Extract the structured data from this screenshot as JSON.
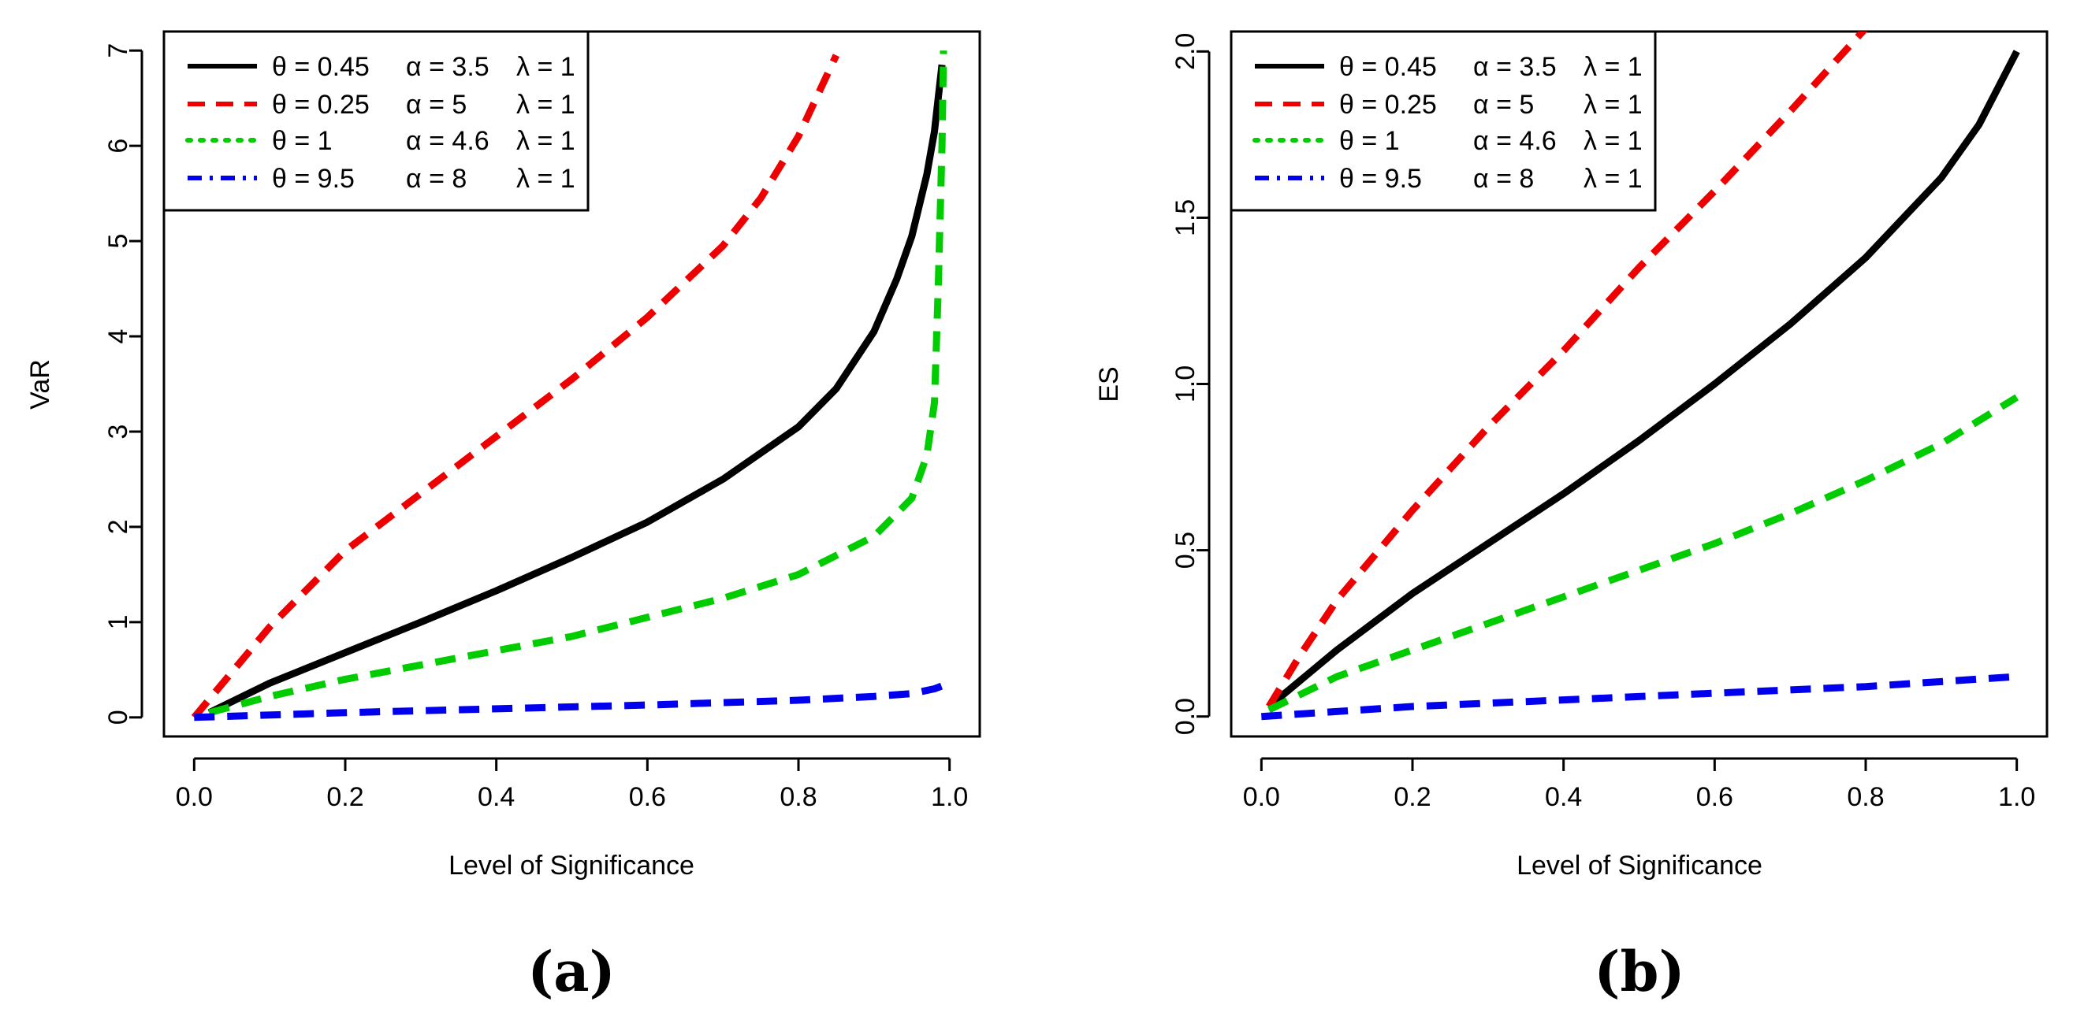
{
  "chart_data": [
    {
      "type": "line",
      "panel_label": "(a)",
      "title": "",
      "xlabel": "Level of Significance",
      "ylabel": "VaR",
      "xlim": [
        -0.04,
        1.04
      ],
      "ylim": [
        -0.2,
        7.2
      ],
      "xticks": [
        0.0,
        0.2,
        0.4,
        0.6,
        0.8,
        1.0
      ],
      "xtick_labels": [
        "0.0",
        "0.2",
        "0.4",
        "0.6",
        "0.8",
        "1.0"
      ],
      "yticks": [
        0,
        1,
        2,
        3,
        4,
        5,
        6,
        7
      ],
      "ytick_labels": [
        "0",
        "1",
        "2",
        "3",
        "4",
        "5",
        "6",
        "7"
      ],
      "grid": false,
      "legend_position": "top-left",
      "series": [
        {
          "name": "θ = 0.45  α = 3.5  λ = 1",
          "legend": {
            "theta": "θ = 0.45",
            "alpha": "α = 3.5",
            "lambda": "λ = 1"
          },
          "color": "#000000",
          "style": "solid",
          "x": [
            0.02,
            0.1,
            0.2,
            0.3,
            0.4,
            0.5,
            0.6,
            0.7,
            0.8,
            0.85,
            0.9,
            0.93,
            0.95,
            0.97,
            0.98,
            0.99
          ],
          "y": [
            0.05,
            0.36,
            0.68,
            1.0,
            1.33,
            1.68,
            2.05,
            2.5,
            3.05,
            3.45,
            4.05,
            4.6,
            5.05,
            5.7,
            6.15,
            6.85
          ]
        },
        {
          "name": "θ = 0.25  α = 5  λ = 1",
          "legend": {
            "theta": "θ = 0.25",
            "alpha": "α = 5",
            "lambda": "λ = 1"
          },
          "color": "#ee0000",
          "style": "dashed",
          "x": [
            0.0,
            0.1,
            0.2,
            0.3,
            0.4,
            0.5,
            0.6,
            0.7,
            0.75,
            0.8,
            0.85
          ],
          "y": [
            0.0,
            0.95,
            1.75,
            2.35,
            2.95,
            3.55,
            4.2,
            4.95,
            5.45,
            6.1,
            6.95
          ]
        },
        {
          "name": "θ = 1  α = 4.6  λ = 1",
          "legend": {
            "theta": "θ = 1",
            "alpha": "α = 4.6",
            "lambda": "λ = 1"
          },
          "color": "#00cc00",
          "style": "dashed",
          "x": [
            0.02,
            0.1,
            0.2,
            0.3,
            0.4,
            0.5,
            0.6,
            0.7,
            0.8,
            0.9,
            0.95,
            0.97,
            0.98,
            0.985,
            0.99,
            0.992
          ],
          "y": [
            0.05,
            0.22,
            0.4,
            0.55,
            0.7,
            0.85,
            1.05,
            1.25,
            1.5,
            1.9,
            2.3,
            2.75,
            3.3,
            4.5,
            6.0,
            7.0
          ]
        },
        {
          "name": "θ = 9.5  α = 8  λ = 1",
          "legend": {
            "theta": "θ = 9.5",
            "alpha": "α = 8",
            "lambda": "λ = 1"
          },
          "color": "#0000ee",
          "style": "dashed",
          "x": [
            0.0,
            0.2,
            0.4,
            0.6,
            0.8,
            0.9,
            0.95,
            0.98,
            0.99
          ],
          "y": [
            0.0,
            0.05,
            0.09,
            0.13,
            0.18,
            0.22,
            0.25,
            0.3,
            0.33
          ]
        }
      ]
    },
    {
      "type": "line",
      "panel_label": "(b)",
      "title": "",
      "xlabel": "Level of Significance",
      "ylabel": "ES",
      "xlim": [
        -0.04,
        1.04
      ],
      "ylim": [
        -0.06,
        2.06
      ],
      "xticks": [
        0.0,
        0.2,
        0.4,
        0.6,
        0.8,
        1.0
      ],
      "xtick_labels": [
        "0.0",
        "0.2",
        "0.4",
        "0.6",
        "0.8",
        "1.0"
      ],
      "yticks": [
        0.0,
        0.5,
        1.0,
        1.5,
        2.0
      ],
      "ytick_labels": [
        "0.0",
        "0.5",
        "1.0",
        "1.5",
        "2.0"
      ],
      "grid": false,
      "legend_position": "top-left",
      "series": [
        {
          "name": "θ = 0.45  α = 3.5  λ = 1",
          "legend": {
            "theta": "θ = 0.45",
            "alpha": "α = 3.5",
            "lambda": "λ = 1"
          },
          "color": "#000000",
          "style": "solid",
          "x": [
            0.01,
            0.1,
            0.2,
            0.3,
            0.4,
            0.5,
            0.6,
            0.7,
            0.8,
            0.9,
            0.95,
            1.0
          ],
          "y": [
            0.03,
            0.2,
            0.37,
            0.52,
            0.67,
            0.83,
            1.0,
            1.18,
            1.38,
            1.62,
            1.78,
            2.0
          ]
        },
        {
          "name": "θ = 0.25  α = 5  λ = 1",
          "legend": {
            "theta": "θ = 0.25",
            "alpha": "α = 5",
            "lambda": "λ = 1"
          },
          "color": "#ee0000",
          "style": "dashed",
          "x": [
            0.01,
            0.05,
            0.1,
            0.2,
            0.3,
            0.4,
            0.5,
            0.6,
            0.7,
            0.8,
            0.81
          ],
          "y": [
            0.03,
            0.18,
            0.35,
            0.62,
            0.87,
            1.1,
            1.35,
            1.58,
            1.82,
            2.07,
            2.1
          ]
        },
        {
          "name": "θ = 1  α = 4.6  λ = 1",
          "legend": {
            "theta": "θ = 1",
            "alpha": "α = 4.6",
            "lambda": "λ = 1"
          },
          "color": "#00cc00",
          "style": "dashed",
          "x": [
            0.01,
            0.1,
            0.2,
            0.3,
            0.4,
            0.5,
            0.6,
            0.7,
            0.8,
            0.9,
            1.0
          ],
          "y": [
            0.02,
            0.12,
            0.2,
            0.28,
            0.36,
            0.44,
            0.52,
            0.61,
            0.71,
            0.82,
            0.96
          ]
        },
        {
          "name": "θ = 9.5  α = 8  λ = 1",
          "legend": {
            "theta": "θ = 9.5",
            "alpha": "α = 8",
            "lambda": "λ = 1"
          },
          "color": "#0000ee",
          "style": "dashed",
          "x": [
            0.0,
            0.2,
            0.4,
            0.6,
            0.8,
            1.0
          ],
          "y": [
            0.0,
            0.03,
            0.05,
            0.07,
            0.09,
            0.12
          ]
        }
      ]
    }
  ]
}
